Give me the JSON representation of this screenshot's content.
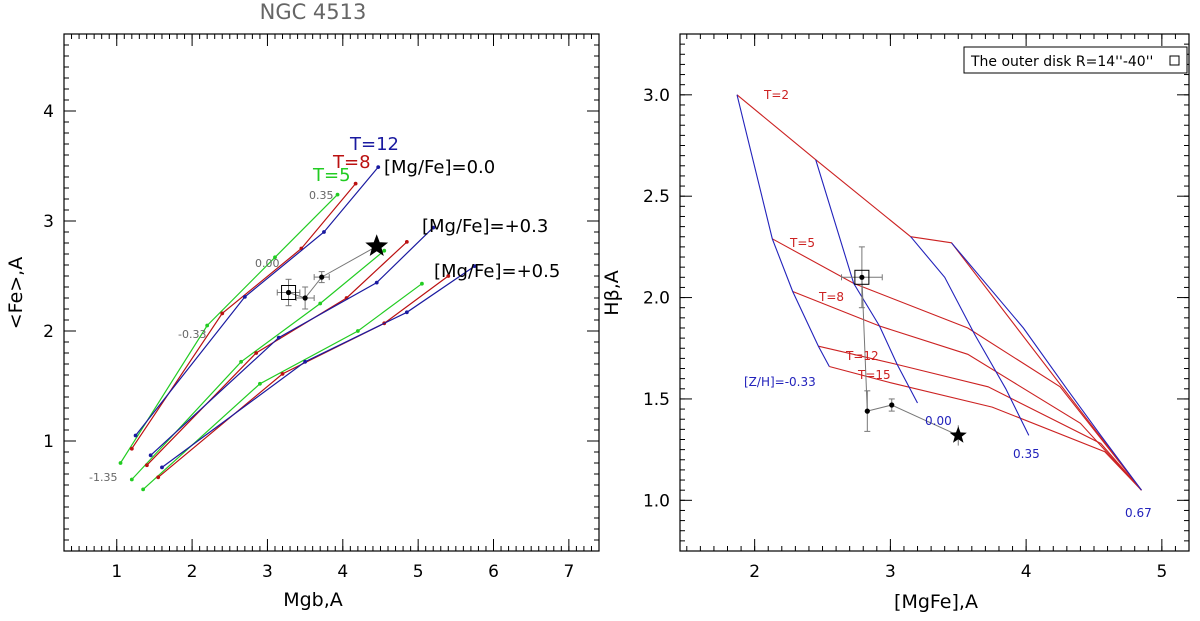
{
  "colors": {
    "green": "#22cc22",
    "red": "#bb1111",
    "blue": "#1a1aa0",
    "grid_blue": "#2222bb",
    "grid_red": "#cc2222",
    "gray": "#777777",
    "black": "#000000"
  },
  "chart_data": [
    {
      "type": "line",
      "title": "NGC 4513",
      "xlabel": "Mgb,A",
      "ylabel": "<Fe>,A",
      "xlim": [
        0.3,
        7.4
      ],
      "ylim": [
        0.0,
        4.7
      ],
      "xticks": [
        "1",
        "2",
        "3",
        "4",
        "5",
        "6",
        "7"
      ],
      "yticks": [
        "1",
        "2",
        "3",
        "4"
      ],
      "x_major_ticks": [
        1,
        2,
        3,
        4,
        5,
        6,
        7
      ],
      "y_major_ticks": [
        1,
        2,
        3,
        4
      ],
      "series": [
        {
          "name": "T=5",
          "color": "green",
          "label_text": "T=5",
          "tracks": [
            [
              [
                1.05,
                0.8
              ],
              [
                2.2,
                2.05
              ],
              [
                3.1,
                2.67
              ],
              [
                3.93,
                3.24
              ]
            ],
            [
              [
                1.2,
                0.65
              ],
              [
                2.65,
                1.72
              ],
              [
                3.7,
                2.25
              ],
              [
                4.55,
                2.73
              ]
            ],
            [
              [
                1.35,
                0.56
              ],
              [
                2.9,
                1.52
              ],
              [
                4.2,
                2.0
              ],
              [
                5.05,
                2.43
              ]
            ]
          ]
        },
        {
          "name": "T=8",
          "color": "red",
          "label_text": "T=8",
          "tracks": [
            [
              [
                1.2,
                0.93
              ],
              [
                2.4,
                2.16
              ],
              [
                3.45,
                2.75
              ],
              [
                4.17,
                3.34
              ]
            ],
            [
              [
                1.4,
                0.78
              ],
              [
                2.85,
                1.8
              ],
              [
                4.05,
                2.3
              ],
              [
                4.85,
                2.81
              ]
            ],
            [
              [
                1.55,
                0.67
              ],
              [
                3.2,
                1.61
              ],
              [
                4.55,
                2.07
              ],
              [
                5.4,
                2.5
              ]
            ]
          ]
        },
        {
          "name": "T=12",
          "color": "blue",
          "label_text": "T=12",
          "tracks": [
            [
              [
                1.25,
                1.05
              ],
              [
                2.7,
                2.31
              ],
              [
                3.75,
                2.9
              ],
              [
                4.47,
                3.49
              ]
            ],
            [
              [
                1.45,
                0.87
              ],
              [
                3.15,
                1.94
              ],
              [
                4.45,
                2.44
              ],
              [
                5.2,
                2.94
              ]
            ],
            [
              [
                1.6,
                0.76
              ],
              [
                3.5,
                1.72
              ],
              [
                4.85,
                2.17
              ],
              [
                5.75,
                2.59
              ]
            ]
          ]
        }
      ],
      "mgfe_labels": [
        "[Mg/Fe]=0.0",
        "[Mg/Fe]=+0.3",
        "[Mg/Fe]=+0.5"
      ],
      "metallicity_labels": [
        "0.35",
        "0.00",
        "-0.33",
        "-1.35"
      ],
      "observations": [
        {
          "x": 3.28,
          "y": 2.35,
          "xerr": 0.15,
          "yerr": 0.12
        },
        {
          "x": 3.5,
          "y": 2.3,
          "xerr": 0.12,
          "yerr": 0.1
        },
        {
          "x": 3.72,
          "y": 2.49,
          "xerr": 0.1,
          "yerr": 0.05
        }
      ],
      "open_square": {
        "x": 3.28,
        "y": 2.35
      },
      "star": {
        "x": 4.45,
        "y": 2.77
      }
    },
    {
      "type": "line",
      "title": "",
      "xlabel": "[MgFe],A",
      "ylabel": "Hβ,A",
      "xlim": [
        1.45,
        5.2
      ],
      "ylim": [
        0.75,
        3.3
      ],
      "xticks": [
        "2",
        "3",
        "4",
        "5"
      ],
      "yticks": [
        "1.0",
        "1.5",
        "2.0",
        "2.5",
        "3.0"
      ],
      "x_major_ticks": [
        2,
        3,
        4,
        5
      ],
      "y_major_ticks": [
        1.0,
        1.5,
        2.0,
        2.5,
        3.0
      ],
      "legend": "The outer disk R=14''-40''",
      "age_lines": [
        {
          "label": "T=2",
          "points": [
            [
              1.87,
              3.0
            ],
            [
              2.45,
              2.68
            ],
            [
              3.15,
              2.3
            ],
            [
              3.45,
              2.27
            ],
            [
              4.85,
              1.05
            ]
          ]
        },
        {
          "label": "T=5",
          "points": [
            [
              2.13,
              2.29
            ],
            [
              2.73,
              2.07
            ],
            [
              3.57,
              1.85
            ],
            [
              4.25,
              1.56
            ],
            [
              4.85,
              1.05
            ]
          ]
        },
        {
          "label": "T=8",
          "points": [
            [
              2.28,
              2.03
            ],
            [
              2.92,
              1.86
            ],
            [
              3.57,
              1.72
            ],
            [
              4.4,
              1.38
            ],
            [
              4.85,
              1.05
            ]
          ]
        },
        {
          "label": "T=12",
          "points": [
            [
              2.47,
              1.76
            ],
            [
              3.05,
              1.67
            ],
            [
              3.72,
              1.56
            ],
            [
              4.55,
              1.28
            ],
            [
              4.85,
              1.05
            ]
          ]
        },
        {
          "label": "T=15",
          "points": [
            [
              2.55,
              1.66
            ],
            [
              3.0,
              1.58
            ],
            [
              3.75,
              1.46
            ],
            [
              4.58,
              1.24
            ],
            [
              4.85,
              1.05
            ]
          ]
        }
      ],
      "metallicity_lines": [
        {
          "label": "[Z/H]=-0.33",
          "points": [
            [
              1.87,
              3.0
            ],
            [
              2.13,
              2.29
            ],
            [
              2.28,
              2.03
            ],
            [
              2.47,
              1.76
            ],
            [
              2.55,
              1.66
            ]
          ]
        },
        {
          "label": "0.00",
          "points": [
            [
              2.45,
              2.68
            ],
            [
              2.73,
              2.07
            ],
            [
              2.92,
              1.86
            ],
            [
              3.05,
              1.67
            ],
            [
              3.2,
              1.48
            ]
          ]
        },
        {
          "label": "0.35",
          "points": [
            [
              3.15,
              2.3
            ],
            [
              3.4,
              2.1
            ],
            [
              3.62,
              1.82
            ],
            [
              3.85,
              1.55
            ],
            [
              4.02,
              1.32
            ]
          ]
        },
        {
          "label": "0.67",
          "points": [
            [
              3.45,
              2.27
            ],
            [
              3.98,
              1.85
            ],
            [
              4.3,
              1.55
            ],
            [
              4.55,
              1.32
            ],
            [
              4.85,
              1.05
            ]
          ]
        }
      ],
      "observations": [
        {
          "x": 2.79,
          "y": 2.1,
          "xerr": 0.15,
          "yerr": 0.15
        },
        {
          "x": 2.83,
          "y": 1.44,
          "xerr": 0.0,
          "yerr": 0.1
        },
        {
          "x": 3.01,
          "y": 1.47,
          "xerr": 0.0,
          "yerr": 0.03
        }
      ],
      "open_square": {
        "x": 2.79,
        "y": 2.1
      },
      "star": {
        "x": 3.5,
        "y": 1.32,
        "yerr": 0.05
      }
    }
  ]
}
